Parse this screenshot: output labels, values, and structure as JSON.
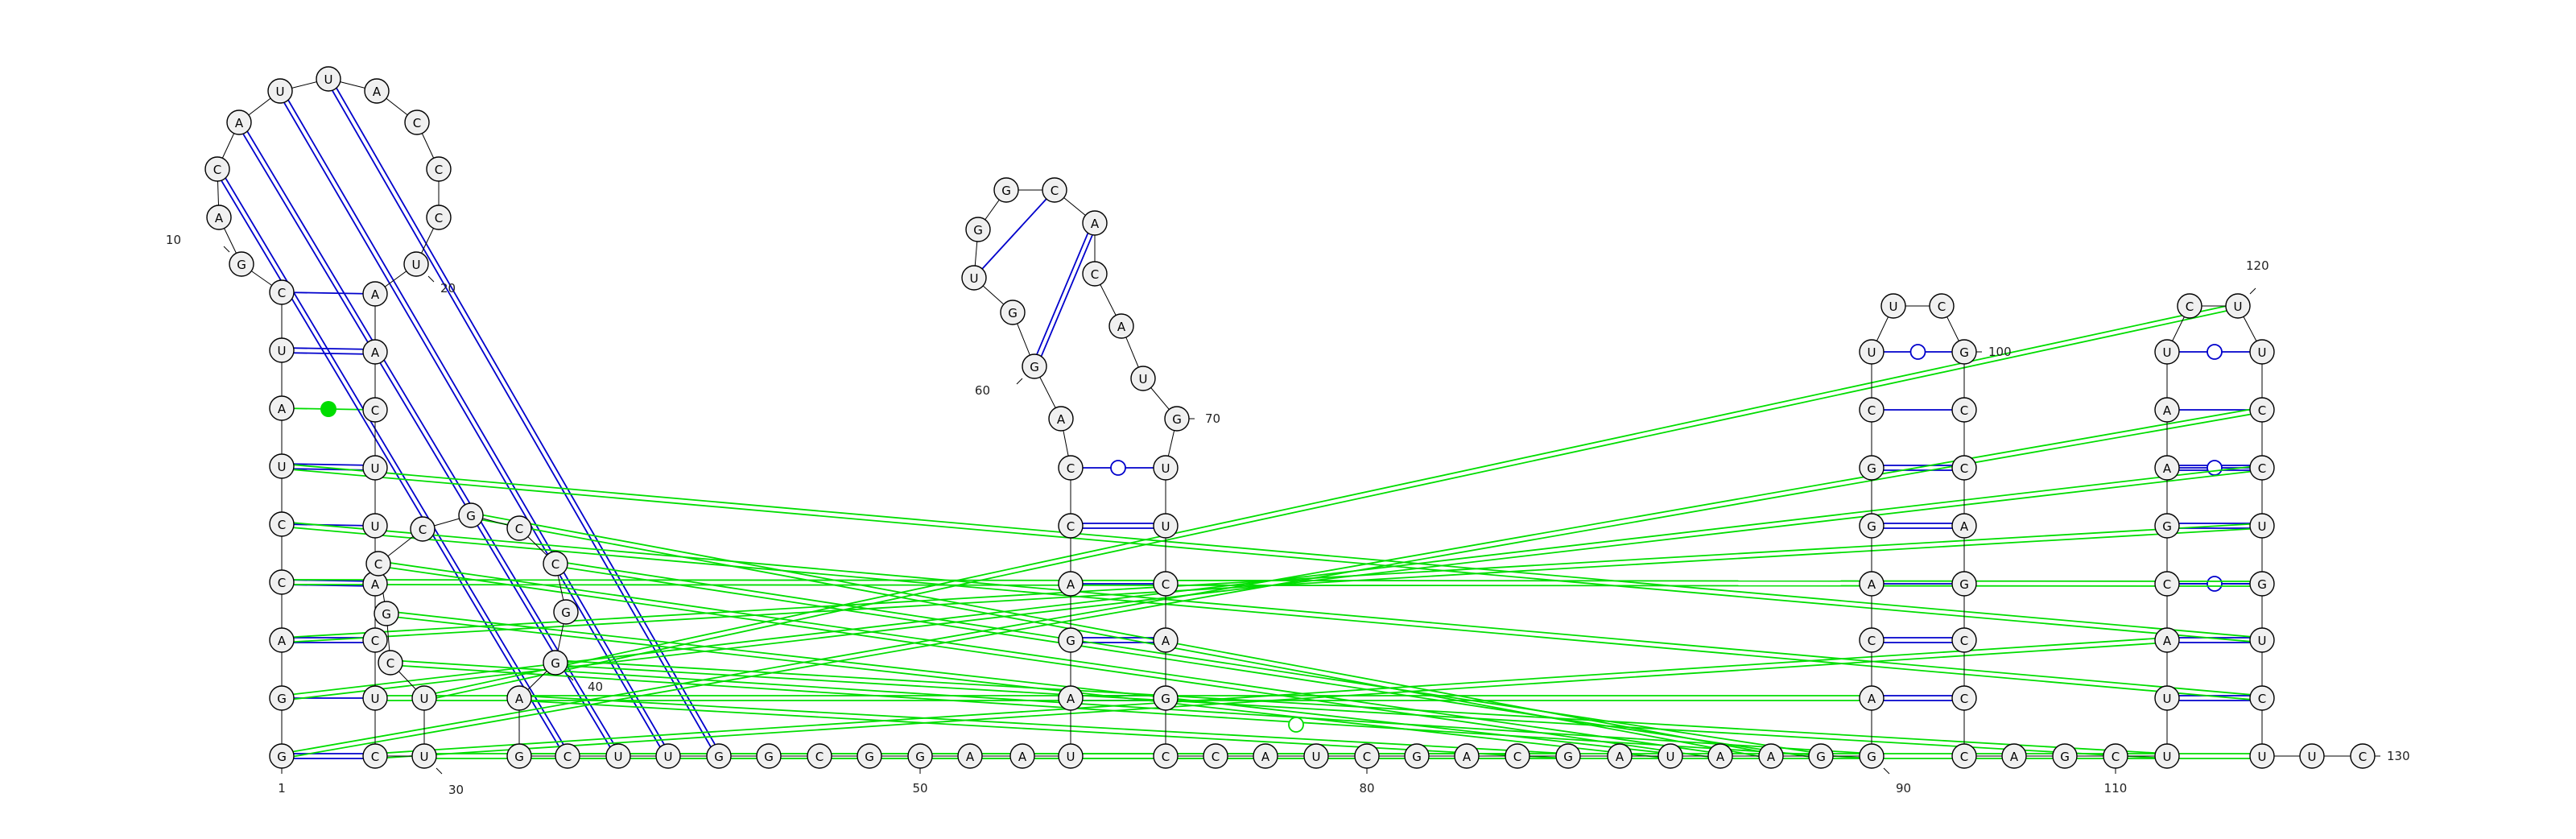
{
  "colors": {
    "canonical_pair": "#0000cc",
    "noncanonical_pair": "#00dd00",
    "nucleotide_fill": "#f0f0f0",
    "nucleotide_stroke": "#000000",
    "backbone": "#000000"
  },
  "sequence": "GGACCUAUCGACAUUACCCUAACUUACUCUUCGCCGCCGGAGCUUGGCGGAAUAGACCAGGUGGCACAUGUUCAGCCAUCGACGAUAAGGACAGGCUUCGCCAGCCCAGCUUACGAAUCUUCCUGUCUUCC",
  "numbering": [
    {
      "text": "1",
      "nt": 1
    },
    {
      "text": "10",
      "nt": 10
    },
    {
      "text": "20",
      "nt": 20
    },
    {
      "text": "30",
      "nt": 30
    },
    {
      "text": "40",
      "nt": 40
    },
    {
      "text": "50",
      "nt": 50
    },
    {
      "text": "60",
      "nt": 60
    },
    {
      "text": "70",
      "nt": 70
    },
    {
      "text": "80",
      "nt": 80
    },
    {
      "text": "90",
      "nt": 90
    },
    {
      "text": "100",
      "nt": 100
    },
    {
      "text": "110",
      "nt": 110
    },
    {
      "text": "120",
      "nt": 120
    },
    {
      "text": "130",
      "nt": 130
    }
  ],
  "base_pairs": [
    {
      "i": 1,
      "j": 27,
      "type": "wc"
    },
    {
      "i": 2,
      "j": 28,
      "type": "wc"
    },
    {
      "i": 3,
      "j": 29,
      "type": "wc"
    },
    {
      "i": 4,
      "j": 30,
      "type": "wc"
    },
    {
      "i": 5,
      "j": 31,
      "type": "wc"
    },
    {
      "i": 6,
      "j": 32,
      "type": "wc"
    },
    {
      "i": 7,
      "j": 33,
      "type": "nc_dot"
    },
    {
      "i": 8,
      "j": 34,
      "type": "wc"
    },
    {
      "i": 9,
      "j": 35,
      "type": "wc"
    },
    {
      "i": 59,
      "j": 65,
      "type": "wc"
    },
    {
      "i": 60,
      "j": 64,
      "type": "wc"
    },
    {
      "i": 61,
      "j": 67,
      "type": "wc"
    },
    {
      "i": 52,
      "j": 71,
      "type": "gu"
    },
    {
      "i": 53,
      "j": 72,
      "type": "wc"
    },
    {
      "i": 54,
      "j": 73,
      "type": "wc"
    },
    {
      "i": 55,
      "j": 74,
      "type": "wc"
    },
    {
      "i": 56,
      "j": 75,
      "type": "wc"
    },
    {
      "i": 90,
      "j": 99,
      "type": "wc"
    },
    {
      "i": 91,
      "j": 98,
      "type": "wc"
    },
    {
      "i": 92,
      "j": 97,
      "type": "wc"
    },
    {
      "i": 93,
      "j": 96,
      "type": "wc"
    },
    {
      "i": 94,
      "j": 95,
      "type": "wc"
    },
    {
      "i": 95,
      "j": 101,
      "type": "gu"
    },
    {
      "i": 114,
      "j": 120,
      "type": "gu"
    },
    {
      "i": 115,
      "j": 119,
      "type": "wc"
    },
    {
      "i": 116,
      "j": 118,
      "type": "gu"
    },
    {
      "i": 117,
      "j": 117,
      "type": "wc"
    },
    {
      "i": 118,
      "j": 116,
      "type": "wc"
    },
    {
      "i": 119,
      "j": 115,
      "type": "wc"
    },
    {
      "i": 120,
      "j": 114,
      "type": "gu"
    }
  ]
}
